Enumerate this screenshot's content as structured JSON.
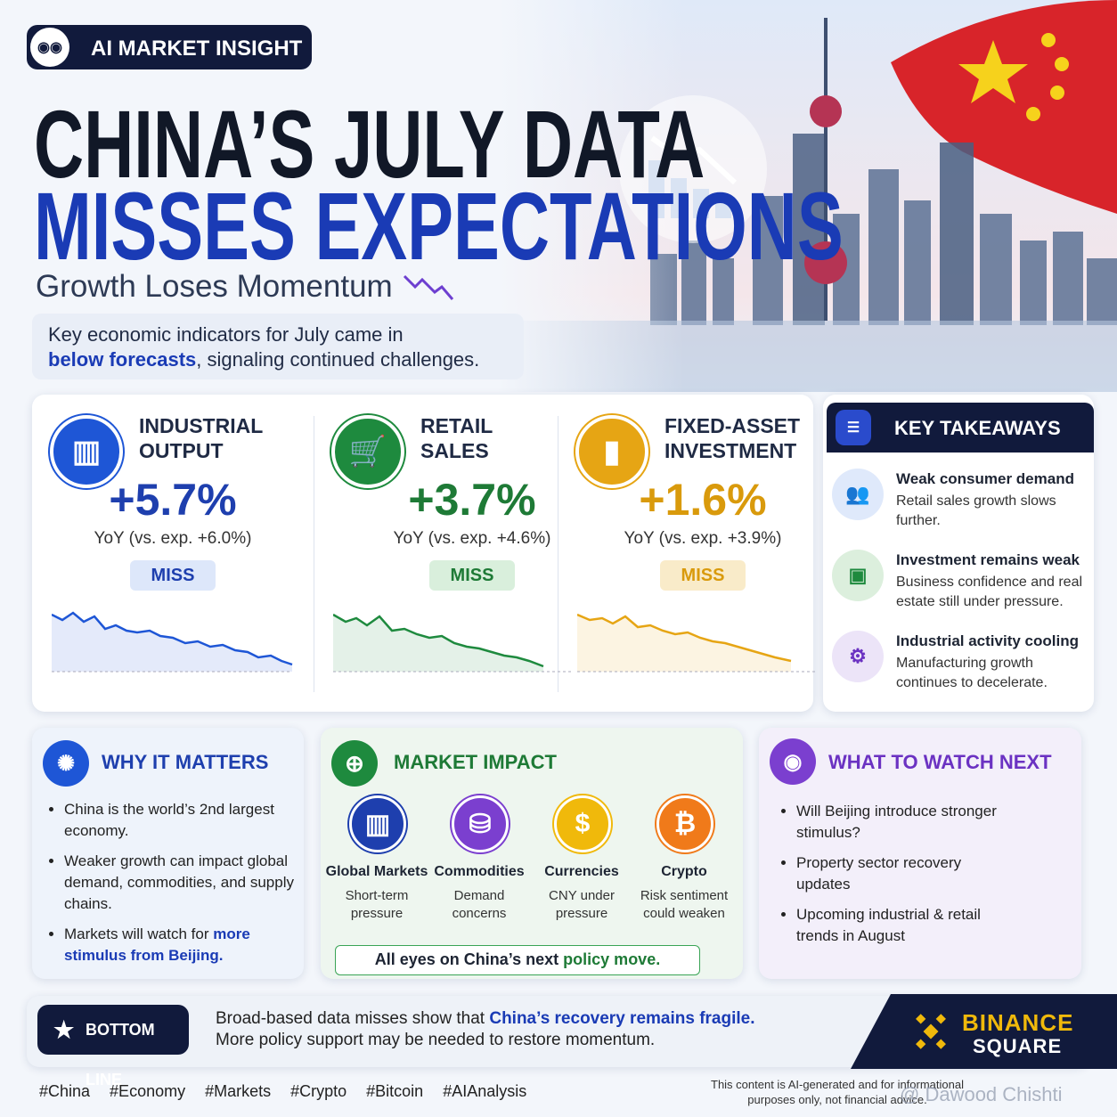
{
  "badge": "AI MARKET INSIGHT",
  "title": {
    "line1": "CHINA’S JULY DATA",
    "line2": "MISSES EXPECTATIONS"
  },
  "subtitle": "Growth Loses Momentum",
  "intro": {
    "text1": "Key economic indicators for July came in",
    "highlight": "below forecasts",
    "text2": ", signaling continued challenges."
  },
  "indicators": [
    {
      "label1": "INDUSTRIAL",
      "label2": "OUTPUT",
      "value": "+5.7%",
      "note": "YoY (vs. exp. +6.0%)",
      "status": "MISS"
    },
    {
      "label1": "RETAIL",
      "label2": "SALES",
      "value": "+3.7%",
      "note": "YoY (vs. exp. +4.6%)",
      "status": "MISS"
    },
    {
      "label1": "FIXED-ASSET",
      "label2": "INVESTMENT",
      "value": "+1.6%",
      "note": "YoY (vs. exp. +3.9%)",
      "status": "MISS"
    }
  ],
  "takeaways": {
    "title": "KEY TAKEAWAYS",
    "items": [
      {
        "title": "Weak consumer demand",
        "text": "Retail sales growth slows further."
      },
      {
        "title": "Investment remains weak",
        "text": "Business confidence and real estate still under pressure."
      },
      {
        "title": "Industrial activity cooling",
        "text": "Manufacturing growth continues to decelerate."
      }
    ]
  },
  "why": {
    "title": "WHY IT MATTERS",
    "bullets": [
      "China is the world’s 2nd largest economy.",
      "Weaker growth can impact global demand, commodities, and supply chains."
    ],
    "last_text": "Markets will watch for ",
    "last_highlight": "more stimulus from Beijing."
  },
  "market": {
    "title": "MARKET IMPACT",
    "items": [
      {
        "name": "Global Markets",
        "note": "Short-term pressure"
      },
      {
        "name": "Commodities",
        "note": "Demand concerns"
      },
      {
        "name": "Currencies",
        "note": "CNY under pressure"
      },
      {
        "name": "Crypto",
        "note": "Risk sentiment could weaken"
      }
    ],
    "footer_text": "All eyes on China’s next ",
    "footer_highlight": "policy move."
  },
  "watch": {
    "title": "WHAT TO WATCH NEXT",
    "bullets": [
      "Will Beijing introduce stronger stimulus?",
      "Property sector recovery updates",
      "Upcoming industrial & retail trends in August"
    ]
  },
  "bottom_line": {
    "label": "BOTTOM LINE",
    "text1": "Broad-based data misses show that ",
    "highlight": "China’s recovery remains fragile.",
    "text2": "More policy support may be needed to restore momentum."
  },
  "brand": {
    "line1": "BINANCE",
    "line2": "SQUARE"
  },
  "hashtags": [
    "#China",
    "#Economy",
    "#Markets",
    "#Crypto",
    "#Bitcoin",
    "#AIAnalysis"
  ],
  "disclaimer": "This content is AI-generated and for informational purposes only, not financial advice.",
  "watermark": "@ Dawood Chishti"
}
